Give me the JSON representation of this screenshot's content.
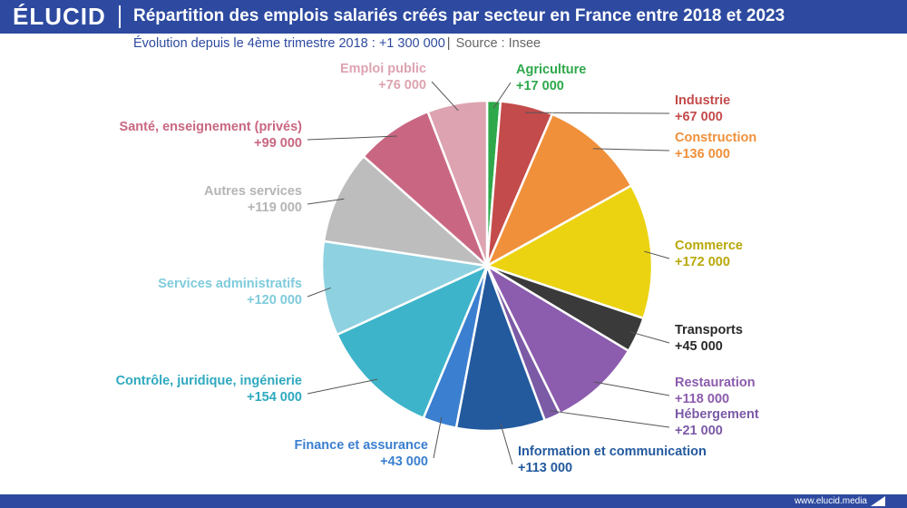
{
  "header": {
    "logo": "ÉLUCID",
    "title": "Répartition des emplois salariés créés par secteur en France entre 2018 et 2023",
    "subtitle": "Évolution depuis le 4ème trimestre 2018 : +1 300 000",
    "source": "Source : Insee"
  },
  "footer": {
    "site": "www.elucid.media"
  },
  "colors": {
    "brand": "#2d4aa0"
  },
  "chart_data": {
    "type": "pie",
    "title": "Répartition des emplois salariés créés par secteur en France entre 2018 et 2023",
    "categories": [
      "Agriculture",
      "Industrie",
      "Construction",
      "Commerce",
      "Transports",
      "Restauration",
      "Hébergement",
      "Information et communication",
      "Finance et assurance",
      "Contrôle, juridique, ingénierie",
      "Services administratifs",
      "Autres services",
      "Santé, enseignement (privés)",
      "Emploi public"
    ],
    "values": [
      17000,
      67000,
      136000,
      172000,
      45000,
      118000,
      21000,
      113000,
      43000,
      154000,
      120000,
      119000,
      99000,
      76000
    ],
    "value_labels": [
      "+17 000",
      "+67 000",
      "+136 000",
      "+172 000",
      "+45 000",
      "+118 000",
      "+21 000",
      "+113 000",
      "+43 000",
      "+154 000",
      "+120 000",
      "+119 000",
      "+99 000",
      "+76 000"
    ],
    "colors": [
      "#2ea84a",
      "#c44b4b",
      "#f0903a",
      "#ebd312",
      "#3a3a3a",
      "#8c5cae",
      "#7b5aa6",
      "#235a9e",
      "#3b7fd0",
      "#3db4c9",
      "#8ed1e0",
      "#bdbdbd",
      "#c96782",
      "#dda3b0"
    ],
    "label_colors": [
      "#2ea84a",
      "#c44b4b",
      "#f0903a",
      "#b8a80a",
      "#2a2a2a",
      "#8c5cae",
      "#7b5aa6",
      "#235a9e",
      "#3b7fd0",
      "#2fa9bf",
      "#7fcbdc",
      "#b5b5b5",
      "#c96782",
      "#dda3b0"
    ]
  }
}
